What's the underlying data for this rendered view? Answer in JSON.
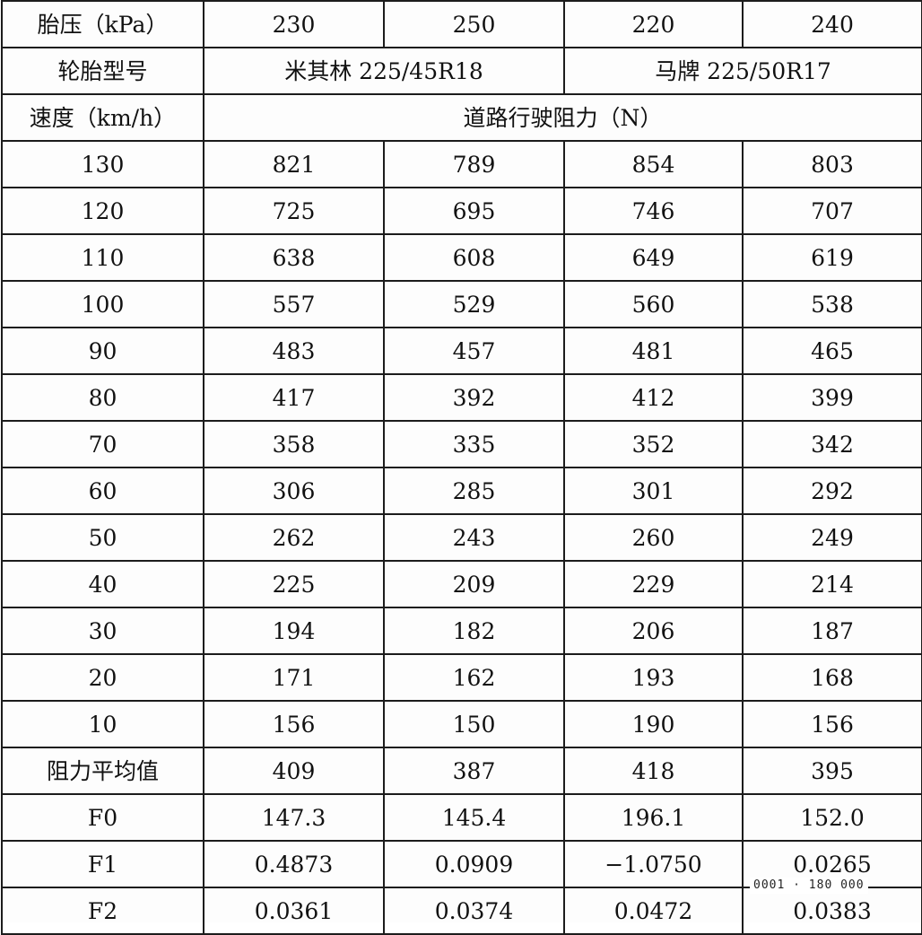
{
  "table": {
    "header_rows": [
      [
        "胎压（kPa）",
        "230",
        "250",
        "220",
        "240"
      ]
    ],
    "tire_model_label": "轮胎型号",
    "tire_models": [
      "米其林 225/45R18",
      "马牌 225/50R17"
    ],
    "speed_label": "速度（km/h）",
    "resistance_label": "道路行驶阻力（N）",
    "speed_rows": [
      [
        "130",
        "821",
        "789",
        "854",
        "803"
      ],
      [
        "120",
        "725",
        "695",
        "746",
        "707"
      ],
      [
        "110",
        "638",
        "608",
        "649",
        "619"
      ],
      [
        "100",
        "557",
        "529",
        "560",
        "538"
      ],
      [
        "90",
        "483",
        "457",
        "481",
        "465"
      ],
      [
        "80",
        "417",
        "392",
        "412",
        "399"
      ],
      [
        "70",
        "358",
        "335",
        "352",
        "342"
      ],
      [
        "60",
        "306",
        "285",
        "301",
        "292"
      ],
      [
        "50",
        "262",
        "243",
        "260",
        "249"
      ],
      [
        "40",
        "225",
        "209",
        "229",
        "214"
      ],
      [
        "30",
        "194",
        "182",
        "206",
        "187"
      ],
      [
        "20",
        "171",
        "162",
        "193",
        "168"
      ],
      [
        "10",
        "156",
        "150",
        "190",
        "156"
      ]
    ],
    "summary_rows": [
      [
        "阻力平均值",
        "409",
        "387",
        "418",
        "395"
      ],
      [
        "F0",
        "147.3",
        "145.4",
        "196.1",
        "152.0"
      ],
      [
        "F1",
        "0.4873",
        "0.0909",
        "−1.0750",
        "0.0265"
      ],
      [
        "F2",
        "0.0361",
        "0.0374",
        "0.0472",
        "0.0383"
      ]
    ]
  },
  "stamp_text": "0001 · 180 000"
}
